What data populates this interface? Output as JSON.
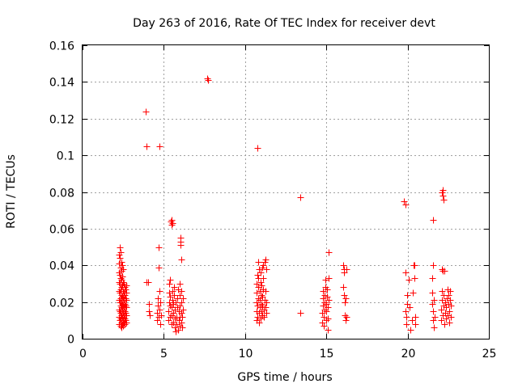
{
  "chart_data": {
    "type": "scatter",
    "title": "Day 263 of 2016, Rate Of TEC Index for receiver devt",
    "xlabel": "GPS time / hours",
    "ylabel": "ROTI / TECUs",
    "xlim": [
      0,
      25
    ],
    "ylim": [
      0,
      0.16
    ],
    "xticks": [
      0,
      5,
      10,
      15,
      20,
      25
    ],
    "yticks": [
      0,
      0.02,
      0.04,
      0.06,
      0.08,
      0.1,
      0.12,
      0.14,
      0.16
    ],
    "xtick_labels": [
      "0",
      "5",
      "10",
      "15",
      "20",
      "25"
    ],
    "ytick_labels": [
      "0",
      "0.02",
      "0.04",
      "0.06",
      "0.08",
      "0.1",
      "0.12",
      "0.14",
      "0.16"
    ],
    "grid": true,
    "marker": "+",
    "color": "#ff0000",
    "series": [
      {
        "name": "ROTI",
        "points": [
          [
            2.25,
            0.008
          ],
          [
            2.25,
            0.012
          ],
          [
            2.25,
            0.016
          ],
          [
            2.25,
            0.021
          ],
          [
            2.25,
            0.026
          ],
          [
            2.25,
            0.031
          ],
          [
            2.25,
            0.036
          ],
          [
            2.25,
            0.041
          ],
          [
            2.25,
            0.046
          ],
          [
            2.3,
            0.01
          ],
          [
            2.3,
            0.015
          ],
          [
            2.3,
            0.02
          ],
          [
            2.3,
            0.025
          ],
          [
            2.3,
            0.03
          ],
          [
            2.3,
            0.035
          ],
          [
            2.3,
            0.044
          ],
          [
            2.3,
            0.05
          ],
          [
            2.35,
            0.007
          ],
          [
            2.35,
            0.011
          ],
          [
            2.35,
            0.014
          ],
          [
            2.35,
            0.018
          ],
          [
            2.35,
            0.022
          ],
          [
            2.35,
            0.027
          ],
          [
            2.35,
            0.033
          ],
          [
            2.35,
            0.039
          ],
          [
            2.35,
            0.047
          ],
          [
            2.4,
            0.006
          ],
          [
            2.4,
            0.009
          ],
          [
            2.4,
            0.013
          ],
          [
            2.4,
            0.017
          ],
          [
            2.4,
            0.02
          ],
          [
            2.4,
            0.024
          ],
          [
            2.4,
            0.028
          ],
          [
            2.4,
            0.032
          ],
          [
            2.4,
            0.037
          ],
          [
            2.4,
            0.042
          ],
          [
            2.45,
            0.008
          ],
          [
            2.45,
            0.012
          ],
          [
            2.45,
            0.016
          ],
          [
            2.45,
            0.019
          ],
          [
            2.45,
            0.023
          ],
          [
            2.45,
            0.029
          ],
          [
            2.45,
            0.034
          ],
          [
            2.45,
            0.04
          ],
          [
            2.5,
            0.007
          ],
          [
            2.5,
            0.01
          ],
          [
            2.5,
            0.014
          ],
          [
            2.5,
            0.018
          ],
          [
            2.5,
            0.022
          ],
          [
            2.5,
            0.026
          ],
          [
            2.5,
            0.031
          ],
          [
            2.5,
            0.038
          ],
          [
            2.55,
            0.009
          ],
          [
            2.55,
            0.013
          ],
          [
            2.55,
            0.017
          ],
          [
            2.55,
            0.021
          ],
          [
            2.55,
            0.025
          ],
          [
            2.55,
            0.03
          ],
          [
            2.6,
            0.008
          ],
          [
            2.6,
            0.011
          ],
          [
            2.6,
            0.015
          ],
          [
            2.6,
            0.019
          ],
          [
            2.6,
            0.024
          ],
          [
            2.6,
            0.028
          ],
          [
            2.65,
            0.01
          ],
          [
            2.65,
            0.014
          ],
          [
            2.65,
            0.018
          ],
          [
            2.65,
            0.022
          ],
          [
            2.65,
            0.027
          ],
          [
            2.7,
            0.009
          ],
          [
            2.7,
            0.013
          ],
          [
            2.7,
            0.017
          ],
          [
            2.7,
            0.021
          ],
          [
            2.7,
            0.025
          ],
          [
            2.7,
            0.029
          ],
          [
            3.9,
            0.124
          ],
          [
            3.95,
            0.105
          ],
          [
            3.95,
            0.031
          ],
          [
            4.05,
            0.031
          ],
          [
            4.1,
            0.019
          ],
          [
            4.1,
            0.015
          ],
          [
            4.15,
            0.013
          ],
          [
            4.75,
            0.105
          ],
          [
            4.7,
            0.05
          ],
          [
            4.7,
            0.039
          ],
          [
            4.6,
            0.01
          ],
          [
            4.6,
            0.014
          ],
          [
            4.65,
            0.018
          ],
          [
            4.65,
            0.022
          ],
          [
            4.7,
            0.012
          ],
          [
            4.75,
            0.016
          ],
          [
            4.75,
            0.026
          ],
          [
            4.8,
            0.02
          ],
          [
            4.8,
            0.008
          ],
          [
            4.85,
            0.013
          ],
          [
            5.3,
            0.01
          ],
          [
            5.3,
            0.015
          ],
          [
            5.35,
            0.02
          ],
          [
            5.35,
            0.025
          ],
          [
            5.35,
            0.03
          ],
          [
            5.4,
            0.012
          ],
          [
            5.4,
            0.018
          ],
          [
            5.4,
            0.023
          ],
          [
            5.4,
            0.032
          ],
          [
            5.45,
            0.064
          ],
          [
            5.5,
            0.062
          ],
          [
            5.5,
            0.065
          ],
          [
            5.55,
            0.063
          ],
          [
            5.5,
            0.008
          ],
          [
            5.5,
            0.013
          ],
          [
            5.5,
            0.017
          ],
          [
            5.55,
            0.021
          ],
          [
            5.55,
            0.026
          ],
          [
            5.6,
            0.009
          ],
          [
            5.6,
            0.014
          ],
          [
            5.6,
            0.019
          ],
          [
            5.65,
            0.024
          ],
          [
            5.65,
            0.028
          ],
          [
            5.7,
            0.006
          ],
          [
            5.7,
            0.011
          ],
          [
            5.7,
            0.016
          ],
          [
            5.75,
            0.02
          ],
          [
            5.75,
            0.004
          ],
          [
            5.8,
            0.008
          ],
          [
            5.8,
            0.012
          ],
          [
            5.85,
            0.017
          ],
          [
            5.85,
            0.022
          ],
          [
            5.9,
            0.027
          ],
          [
            5.9,
            0.005
          ],
          [
            5.95,
            0.01
          ],
          [
            5.95,
            0.015
          ],
          [
            6.0,
            0.007
          ],
          [
            6.0,
            0.012
          ],
          [
            6.0,
            0.018
          ],
          [
            6.0,
            0.024
          ],
          [
            6.0,
            0.03
          ],
          [
            6.05,
            0.051
          ],
          [
            6.05,
            0.053
          ],
          [
            6.05,
            0.055
          ],
          [
            6.1,
            0.009
          ],
          [
            6.1,
            0.014
          ],
          [
            6.1,
            0.02
          ],
          [
            6.1,
            0.026
          ],
          [
            6.1,
            0.043
          ],
          [
            6.15,
            0.006
          ],
          [
            6.15,
            0.012
          ],
          [
            6.2,
            0.016
          ],
          [
            6.2,
            0.022
          ],
          [
            7.65,
            0.142
          ],
          [
            7.7,
            0.141
          ],
          [
            10.75,
            0.104
          ],
          [
            10.7,
            0.01
          ],
          [
            10.7,
            0.015
          ],
          [
            10.7,
            0.02
          ],
          [
            10.7,
            0.025
          ],
          [
            10.7,
            0.03
          ],
          [
            10.75,
            0.035
          ],
          [
            10.75,
            0.012
          ],
          [
            10.75,
            0.018
          ],
          [
            10.8,
            0.022
          ],
          [
            10.8,
            0.028
          ],
          [
            10.8,
            0.033
          ],
          [
            10.85,
            0.038
          ],
          [
            10.85,
            0.009
          ],
          [
            10.85,
            0.014
          ],
          [
            10.9,
            0.017
          ],
          [
            10.9,
            0.021
          ],
          [
            10.9,
            0.026
          ],
          [
            10.95,
            0.031
          ],
          [
            10.95,
            0.036
          ],
          [
            10.95,
            0.011
          ],
          [
            11.0,
            0.015
          ],
          [
            11.0,
            0.019
          ],
          [
            11.0,
            0.024
          ],
          [
            11.0,
            0.029
          ],
          [
            11.05,
            0.013
          ],
          [
            11.05,
            0.018
          ],
          [
            11.05,
            0.023
          ],
          [
            11.1,
            0.027
          ],
          [
            11.1,
            0.033
          ],
          [
            11.1,
            0.04
          ],
          [
            11.15,
            0.012
          ],
          [
            11.15,
            0.016
          ],
          [
            11.2,
            0.042
          ],
          [
            11.25,
            0.043
          ],
          [
            11.2,
            0.021
          ],
          [
            11.25,
            0.017
          ],
          [
            11.25,
            0.026
          ],
          [
            11.3,
            0.014
          ],
          [
            11.3,
            0.02
          ],
          [
            11.3,
            0.038
          ],
          [
            10.8,
            0.042
          ],
          [
            11.05,
            0.039
          ],
          [
            13.4,
            0.077
          ],
          [
            13.4,
            0.014
          ],
          [
            14.75,
            0.009
          ],
          [
            14.75,
            0.014
          ],
          [
            14.8,
            0.018
          ],
          [
            14.8,
            0.022
          ],
          [
            14.8,
            0.026
          ],
          [
            14.85,
            0.007
          ],
          [
            14.85,
            0.012
          ],
          [
            14.9,
            0.016
          ],
          [
            14.9,
            0.02
          ],
          [
            14.9,
            0.024
          ],
          [
            14.95,
            0.028
          ],
          [
            14.95,
            0.032
          ],
          [
            15.0,
            0.01
          ],
          [
            15.0,
            0.015
          ],
          [
            15.0,
            0.019
          ],
          [
            15.05,
            0.023
          ],
          [
            15.05,
            0.027
          ],
          [
            15.1,
            0.005
          ],
          [
            15.1,
            0.011
          ],
          [
            15.1,
            0.017
          ],
          [
            15.15,
            0.021
          ],
          [
            15.15,
            0.033
          ],
          [
            15.15,
            0.047
          ],
          [
            16.05,
            0.04
          ],
          [
            16.1,
            0.038
          ],
          [
            16.1,
            0.036
          ],
          [
            16.05,
            0.028
          ],
          [
            16.1,
            0.024
          ],
          [
            16.15,
            0.02
          ],
          [
            16.15,
            0.013
          ],
          [
            16.2,
            0.01
          ],
          [
            16.2,
            0.022
          ],
          [
            16.25,
            0.012
          ],
          [
            16.25,
            0.038
          ],
          [
            19.75,
            0.075
          ],
          [
            19.85,
            0.073
          ],
          [
            19.85,
            0.036
          ],
          [
            19.85,
            0.015
          ],
          [
            19.9,
            0.012
          ],
          [
            19.9,
            0.008
          ],
          [
            19.95,
            0.024
          ],
          [
            19.95,
            0.019
          ],
          [
            20.05,
            0.032
          ],
          [
            20.1,
            0.017
          ],
          [
            20.15,
            0.005
          ],
          [
            20.25,
            0.01
          ],
          [
            20.3,
            0.025
          ],
          [
            20.35,
            0.04
          ],
          [
            20.4,
            0.033
          ],
          [
            20.4,
            0.04
          ],
          [
            20.45,
            0.008
          ],
          [
            20.45,
            0.012
          ],
          [
            21.55,
            0.065
          ],
          [
            21.55,
            0.04
          ],
          [
            21.5,
            0.033
          ],
          [
            21.5,
            0.025
          ],
          [
            21.5,
            0.019
          ],
          [
            21.55,
            0.015
          ],
          [
            21.55,
            0.01
          ],
          [
            21.6,
            0.006
          ],
          [
            21.6,
            0.021
          ],
          [
            21.65,
            0.012
          ],
          [
            22.1,
            0.08
          ],
          [
            22.15,
            0.078
          ],
          [
            22.15,
            0.081
          ],
          [
            22.2,
            0.076
          ],
          [
            22.15,
            0.037
          ],
          [
            22.1,
            0.038
          ],
          [
            22.25,
            0.037
          ],
          [
            22.05,
            0.01
          ],
          [
            22.05,
            0.016
          ],
          [
            22.1,
            0.021
          ],
          [
            22.1,
            0.026
          ],
          [
            22.15,
            0.013
          ],
          [
            22.2,
            0.018
          ],
          [
            22.2,
            0.024
          ],
          [
            22.25,
            0.008
          ],
          [
            22.3,
            0.014
          ],
          [
            22.3,
            0.02
          ],
          [
            22.35,
            0.011
          ],
          [
            22.35,
            0.017
          ],
          [
            22.4,
            0.022
          ],
          [
            22.45,
            0.027
          ],
          [
            22.45,
            0.013
          ],
          [
            22.5,
            0.019
          ],
          [
            22.5,
            0.024
          ],
          [
            22.55,
            0.009
          ],
          [
            22.55,
            0.015
          ],
          [
            22.6,
            0.021
          ],
          [
            22.6,
            0.026
          ],
          [
            22.65,
            0.012
          ],
          [
            22.65,
            0.018
          ]
        ]
      }
    ]
  }
}
